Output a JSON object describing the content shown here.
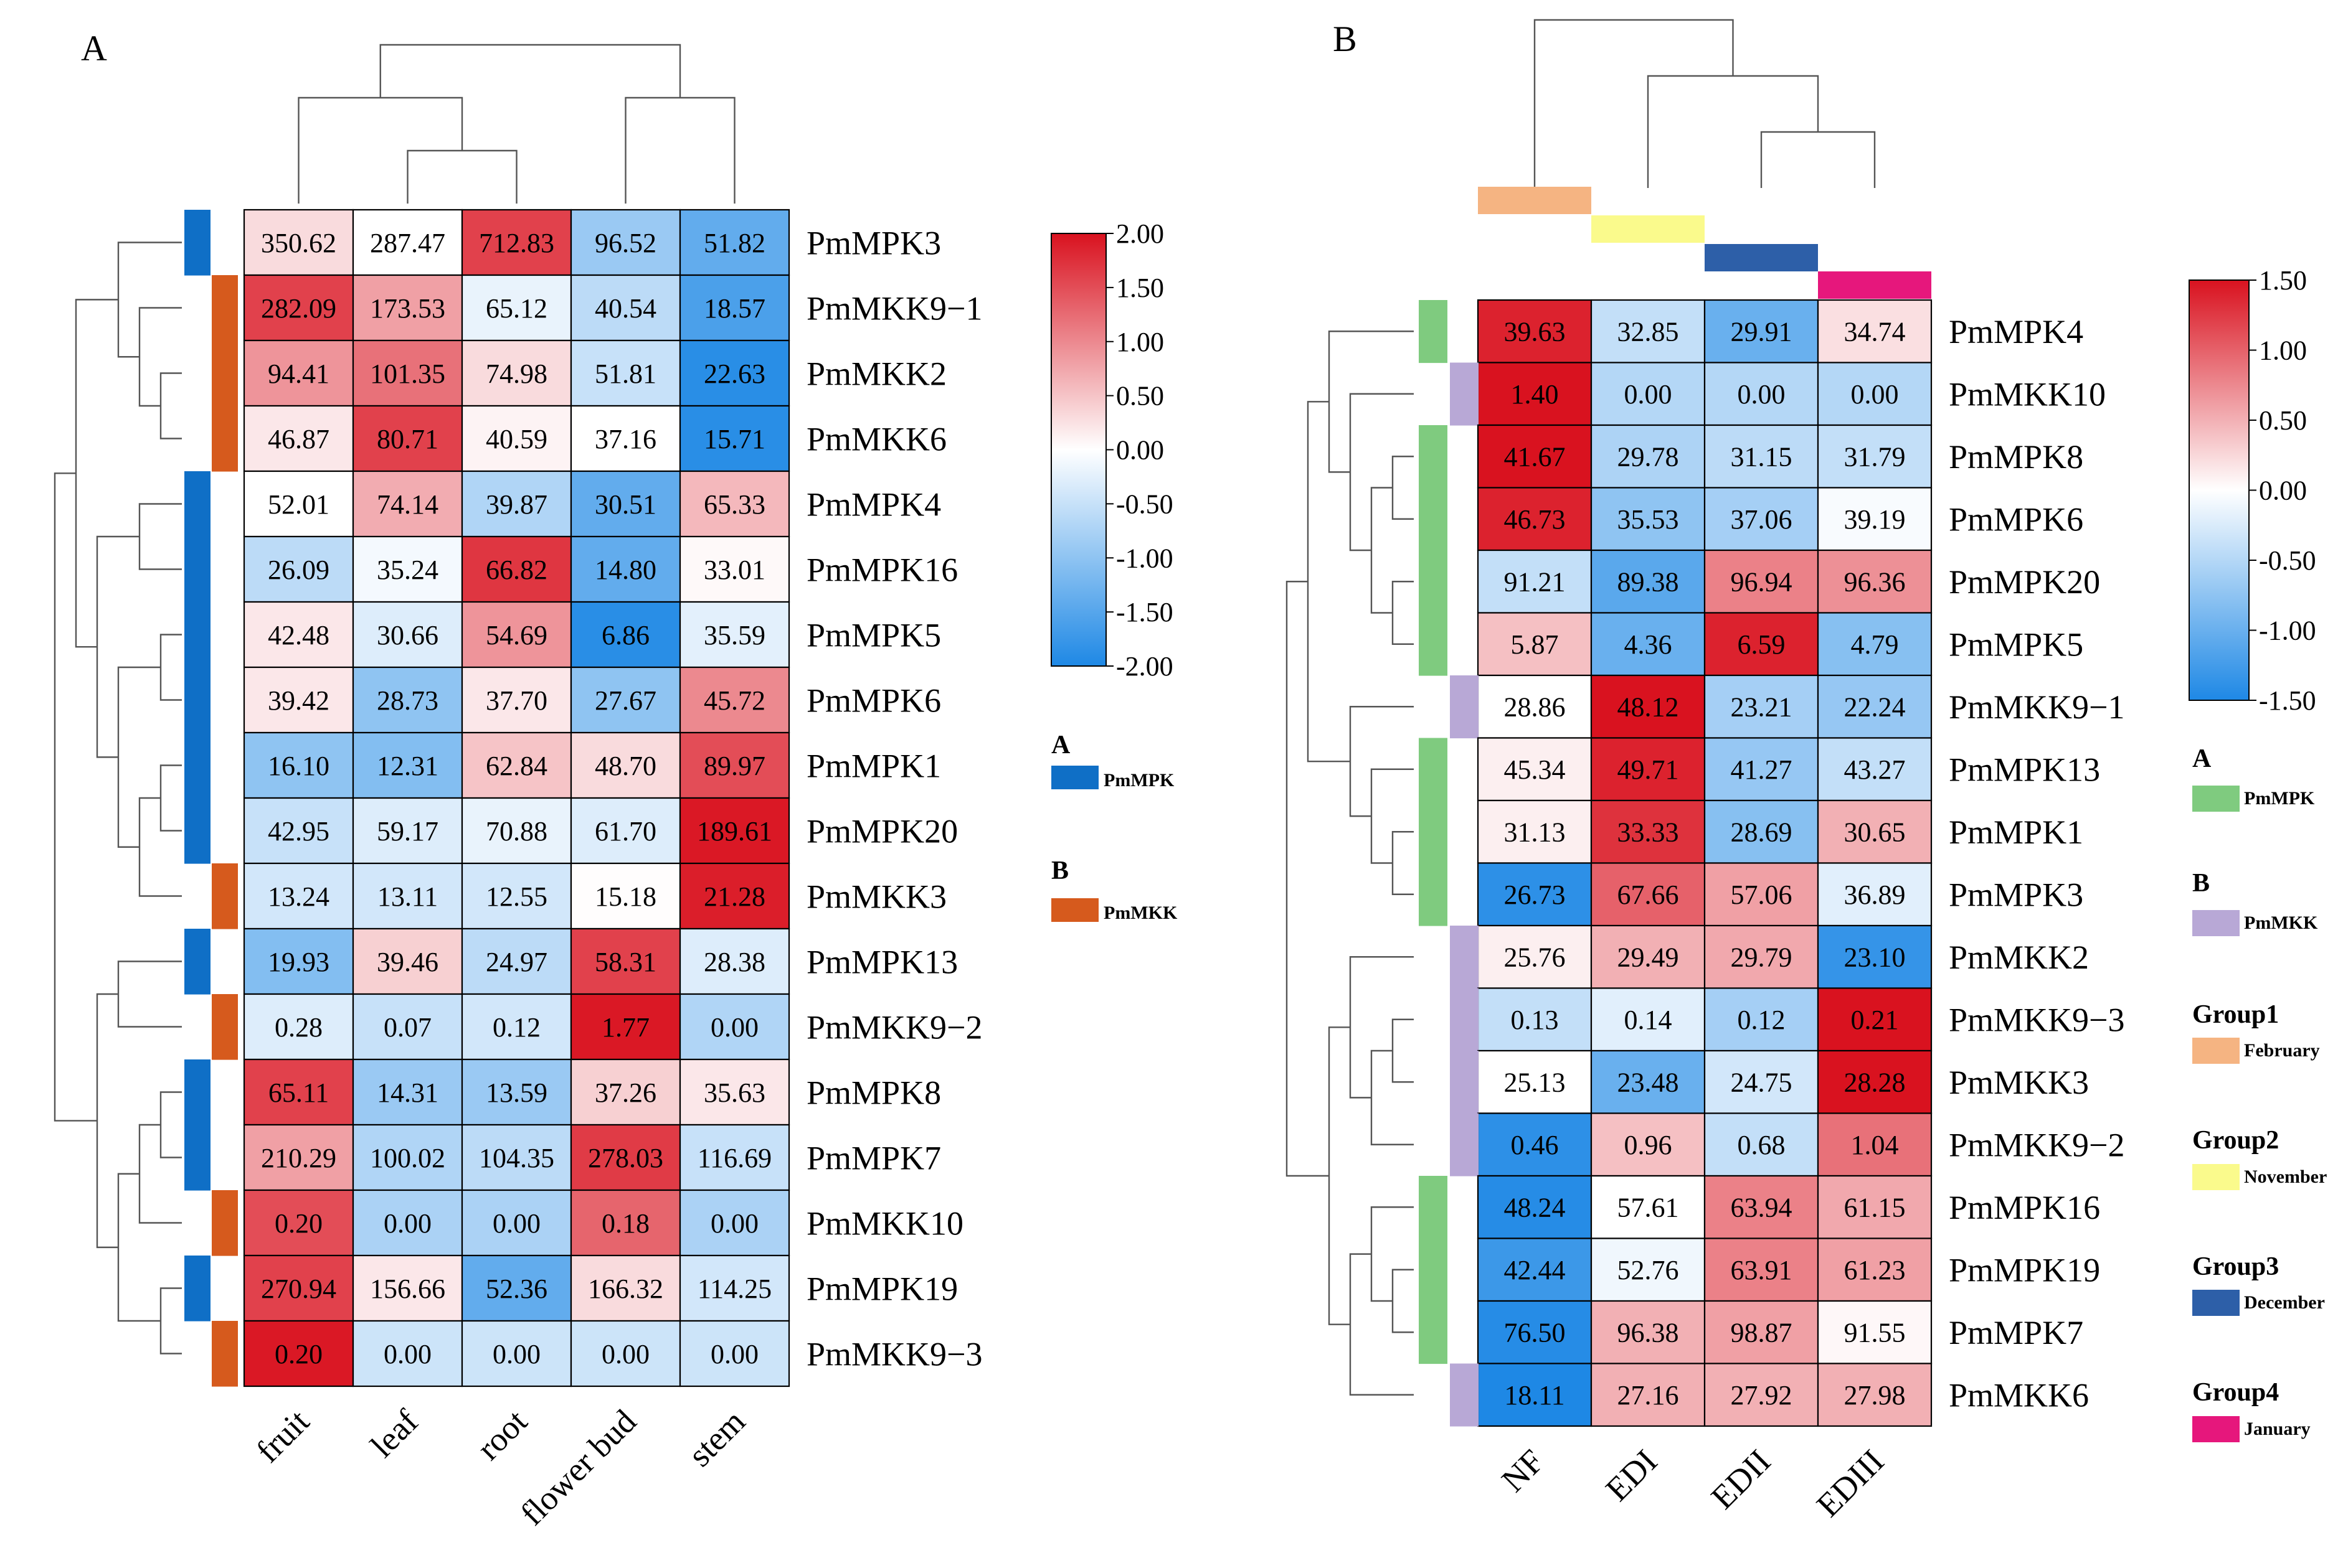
{
  "colors": {
    "low": "#1e88e5",
    "mid": "#ffffff",
    "high": "#d9121f",
    "border": "#000000",
    "dendrogram": "#555555",
    "pmmpk_A": "#0f6fc6",
    "pmmkk_A": "#d65a1d",
    "pmmpk_B": "#7fcb7f",
    "pmmkk_B": "#b8a8d6",
    "group1": "#f5b482",
    "group2": "#fafa8c",
    "group3": "#2d5fa8",
    "group4": "#e6177c"
  },
  "chart_data": [
    {
      "type": "heatmap",
      "panel_label": "A",
      "columns": [
        "fruit",
        "leaf",
        "root",
        "flower bud",
        "stem"
      ],
      "rows": [
        "PmMPK3",
        "PmMKK9−1",
        "PmMKK2",
        "PmMKK6",
        "PmMPK4",
        "PmMPK16",
        "PmMPK5",
        "PmMPK6",
        "PmMPK1",
        "PmMPK20",
        "PmMKK3",
        "PmMPK13",
        "PmMKK9−2",
        "PmMPK8",
        "PmMPK7",
        "PmMKK10",
        "PmMPK19",
        "PmMKK9−3"
      ],
      "row_family": [
        "A",
        "B",
        "B",
        "B",
        "A",
        "A",
        "A",
        "A",
        "A",
        "A",
        "B",
        "A",
        "B",
        "A",
        "A",
        "B",
        "A",
        "B"
      ],
      "labels": [
        [
          "350.62",
          "287.47",
          "712.83",
          "96.52",
          "51.82"
        ],
        [
          "282.09",
          "173.53",
          "65.12",
          "40.54",
          "18.57"
        ],
        [
          "94.41",
          "101.35",
          "74.98",
          "51.81",
          "22.63"
        ],
        [
          "46.87",
          "80.71",
          "40.59",
          "37.16",
          "15.71"
        ],
        [
          "52.01",
          "74.14",
          "39.87",
          "30.51",
          "65.33"
        ],
        [
          "26.09",
          "35.24",
          "66.82",
          "14.80",
          "33.01"
        ],
        [
          "42.48",
          "30.66",
          "54.69",
          "6.86",
          "35.59"
        ],
        [
          "39.42",
          "28.73",
          "37.70",
          "27.67",
          "45.72"
        ],
        [
          "16.10",
          "12.31",
          "62.84",
          "48.70",
          "89.97"
        ],
        [
          "42.95",
          "59.17",
          "70.88",
          "61.70",
          "189.61"
        ],
        [
          "13.24",
          "13.11",
          "12.55",
          "15.18",
          "21.28"
        ],
        [
          "19.93",
          "39.46",
          "24.97",
          "58.31",
          "28.38"
        ],
        [
          "0.28",
          "0.07",
          "0.12",
          "1.77",
          "0.00"
        ],
        [
          "65.11",
          "14.31",
          "13.59",
          "37.26",
          "35.63"
        ],
        [
          "210.29",
          "100.02",
          "104.35",
          "278.03",
          "116.69"
        ],
        [
          "0.20",
          "0.00",
          "0.00",
          "0.18",
          "0.00"
        ],
        [
          "270.94",
          "156.66",
          "52.36",
          "166.32",
          "114.25"
        ],
        [
          "0.20",
          "0.00",
          "0.00",
          "0.00",
          "0.00"
        ]
      ],
      "zscores": [
        [
          0.3,
          0.0,
          1.6,
          -0.9,
          -1.4
        ],
        [
          1.6,
          0.8,
          -0.2,
          -0.6,
          -1.6
        ],
        [
          0.9,
          1.2,
          0.3,
          -0.5,
          -1.9
        ],
        [
          0.2,
          1.6,
          0.1,
          0.0,
          -1.9
        ],
        [
          0.0,
          0.7,
          -0.7,
          -1.4,
          0.6
        ],
        [
          -0.6,
          -0.1,
          1.7,
          -1.4,
          0.05
        ],
        [
          0.2,
          -0.3,
          0.9,
          -1.9,
          -0.25
        ],
        [
          0.2,
          -1.0,
          0.2,
          -1.0,
          1.0
        ],
        [
          -1.0,
          -1.1,
          0.5,
          0.3,
          1.5
        ],
        [
          -0.5,
          -0.3,
          -0.2,
          -0.3,
          1.95
        ],
        [
          -0.4,
          -0.4,
          -0.4,
          0.02,
          1.9
        ],
        [
          -1.1,
          0.4,
          -0.6,
          1.6,
          -0.3
        ],
        [
          -0.3,
          -0.5,
          -0.4,
          1.95,
          -0.7
        ],
        [
          1.6,
          -0.9,
          -0.9,
          0.4,
          0.2
        ],
        [
          0.8,
          -0.7,
          -0.6,
          1.65,
          -0.5
        ],
        [
          1.5,
          -0.75,
          -0.75,
          1.3,
          -0.75
        ],
        [
          1.6,
          0.2,
          -1.4,
          0.3,
          -0.4
        ],
        [
          1.95,
          -0.45,
          -0.45,
          -0.45,
          -0.45
        ]
      ],
      "legend_scale": {
        "ticks": [
          "2.00",
          "1.50",
          "1.00",
          "0.50",
          "0.00",
          "-0.50",
          "-1.00",
          "-1.50",
          "-2.00"
        ],
        "range": [
          -2,
          2
        ]
      },
      "family_legend": {
        "a_title": "A",
        "a_label": "PmMPK",
        "b_title": "B",
        "b_label": "PmMKK"
      }
    },
    {
      "type": "heatmap",
      "panel_label": "B",
      "columns": [
        "NF",
        "EDI",
        "EDII",
        "EDIII"
      ],
      "rows": [
        "PmMPK4",
        "PmMKK10",
        "PmMPK8",
        "PmMPK6",
        "PmMPK20",
        "PmMPK5",
        "PmMKK9−1",
        "PmMPK13",
        "PmMPK1",
        "PmMPK3",
        "PmMKK2",
        "PmMKK9−3",
        "PmMKK3",
        "PmMKK9−2",
        "PmMPK16",
        "PmMPK19",
        "PmMPK7",
        "PmMKK6"
      ],
      "row_family": [
        "A",
        "B",
        "A",
        "A",
        "A",
        "A",
        "B",
        "A",
        "A",
        "A",
        "B",
        "B",
        "B",
        "B",
        "A",
        "A",
        "A",
        "B"
      ],
      "labels": [
        [
          "39.63",
          "32.85",
          "29.91",
          "34.74"
        ],
        [
          "1.40",
          "0.00",
          "0.00",
          "0.00"
        ],
        [
          "41.67",
          "29.78",
          "31.15",
          "31.79"
        ],
        [
          "46.73",
          "35.53",
          "37.06",
          "39.19"
        ],
        [
          "91.21",
          "89.38",
          "96.94",
          "96.36"
        ],
        [
          "5.87",
          "4.36",
          "6.59",
          "4.79"
        ],
        [
          "28.86",
          "48.12",
          "23.21",
          "22.24"
        ],
        [
          "45.34",
          "49.71",
          "41.27",
          "43.27"
        ],
        [
          "31.13",
          "33.33",
          "28.69",
          "30.65"
        ],
        [
          "26.73",
          "67.66",
          "57.06",
          "36.89"
        ],
        [
          "25.76",
          "29.49",
          "29.79",
          "23.10"
        ],
        [
          "0.13",
          "0.14",
          "0.12",
          "0.21"
        ],
        [
          "25.13",
          "23.48",
          "24.75",
          "28.28"
        ],
        [
          "0.46",
          "0.96",
          "0.68",
          "1.04"
        ],
        [
          "48.24",
          "57.61",
          "63.94",
          "61.15"
        ],
        [
          "42.44",
          "52.76",
          "63.91",
          "61.23"
        ],
        [
          "76.50",
          "96.38",
          "98.87",
          "91.55"
        ],
        [
          "18.11",
          "27.16",
          "27.92",
          "27.98"
        ]
      ],
      "zscores": [
        [
          1.4,
          -0.4,
          -1.0,
          0.2
        ],
        [
          1.5,
          -0.5,
          -0.5,
          -0.5
        ],
        [
          1.5,
          -0.55,
          -0.45,
          -0.4
        ],
        [
          1.4,
          -0.75,
          -0.6,
          -0.05
        ],
        [
          -0.4,
          -1.1,
          0.8,
          0.7
        ],
        [
          0.4,
          -1.0,
          1.4,
          -0.8
        ],
        [
          0.0,
          1.5,
          -0.6,
          -0.7
        ],
        [
          0.1,
          1.4,
          -0.7,
          -0.4
        ],
        [
          0.1,
          1.3,
          -0.8,
          0.5
        ],
        [
          -1.4,
          1.0,
          0.6,
          -0.2
        ],
        [
          0.1,
          0.5,
          0.55,
          -1.35
        ],
        [
          -0.4,
          -0.2,
          -0.6,
          1.5
        ],
        [
          0.0,
          -1.0,
          -0.3,
          1.5
        ],
        [
          -1.4,
          0.4,
          -0.4,
          0.9
        ],
        [
          -1.45,
          0.0,
          0.8,
          0.55
        ],
        [
          -1.3,
          -0.1,
          0.8,
          0.6
        ],
        [
          -1.45,
          0.5,
          0.6,
          0.05
        ],
        [
          -1.5,
          0.5,
          0.5,
          0.5
        ]
      ],
      "legend_scale": {
        "ticks": [
          "1.50",
          "1.00",
          "0.50",
          "0.00",
          "-0.50",
          "-1.00",
          "-1.50"
        ],
        "range": [
          -1.5,
          1.5
        ]
      },
      "family_legend": {
        "a_title": "A",
        "a_label": "PmMPK",
        "b_title": "B",
        "b_label": "PmMKK"
      },
      "group_legend": [
        {
          "title": "Group1",
          "label": "February"
        },
        {
          "title": "Group2",
          "label": "November"
        },
        {
          "title": "Group3",
          "label": "December"
        },
        {
          "title": "Group4",
          "label": "January"
        }
      ]
    }
  ]
}
